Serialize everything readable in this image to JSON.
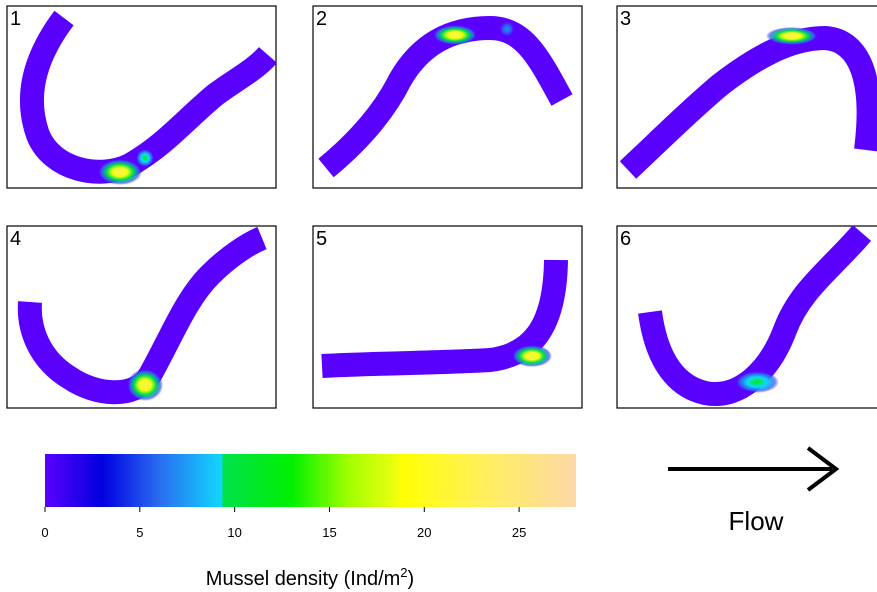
{
  "panels": [
    {
      "number": "1"
    },
    {
      "number": "2"
    },
    {
      "number": "3"
    },
    {
      "number": "4"
    },
    {
      "number": "5"
    },
    {
      "number": "6"
    }
  ],
  "colorbar": {
    "label_text": "Mussel density (Ind/m",
    "label_superscript": "2",
    "label_close": ")",
    "min": 0,
    "max": 28,
    "ticks": [
      "0",
      "5",
      "10",
      "15",
      "20",
      "25"
    ],
    "tick_values": [
      0,
      5,
      10,
      15,
      20,
      25
    ],
    "color_stops": [
      {
        "value": 0,
        "color": "#5a00ff"
      },
      {
        "value": 3,
        "color": "#0000e0"
      },
      {
        "value": 6,
        "color": "#2a6cf0"
      },
      {
        "value": 9.3,
        "color": "#10d6ff"
      },
      {
        "value": 9.4,
        "color": "#00e04a"
      },
      {
        "value": 13,
        "color": "#00f000"
      },
      {
        "value": 16,
        "color": "#a0ff00"
      },
      {
        "value": 18.6,
        "color": "#f0ff10"
      },
      {
        "value": 18.7,
        "color": "#ffff00"
      },
      {
        "value": 23,
        "color": "#fff05a"
      },
      {
        "value": 28,
        "color": "#fdd8a8"
      }
    ]
  },
  "flow": {
    "label": "Flow",
    "direction": "right"
  },
  "colors": {
    "river_base": "#5a00ff",
    "frame": "#000000"
  }
}
